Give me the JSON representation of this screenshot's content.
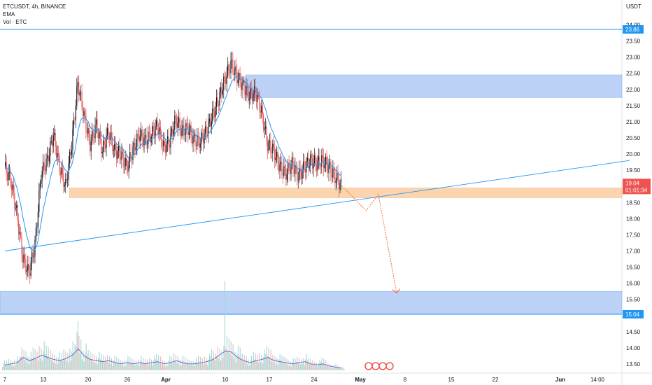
{
  "header": {
    "symbol_line": "ETCUSDT, 4h, BINANCE",
    "ema_label": "EMA",
    "volume_label": "Vol · ETC"
  },
  "chart_data": {
    "type": "candlestick",
    "currency": "USDT",
    "ylim": [
      13.25,
      24.25
    ],
    "y_ticks": [
      "24.00",
      "23.50",
      "23.00",
      "22.50",
      "22.00",
      "21.50",
      "21.00",
      "20.50",
      "20.00",
      "19.50",
      "19.00",
      "18.50",
      "18.00",
      "17.50",
      "17.00",
      "16.50",
      "16.00",
      "15.50",
      "15.00",
      "14.50",
      "14.00",
      "13.50"
    ],
    "x_ticks": [
      "7",
      "13",
      "20",
      "26",
      "Apr",
      "10",
      "17",
      "24",
      "May",
      "8",
      "15",
      "22",
      "Jun",
      "14:00"
    ],
    "grid": false,
    "price_labels": {
      "upper_line": "23.86",
      "current_price": "19.04",
      "countdown": "01:01:34",
      "lower_zone": "15.04"
    },
    "colors": {
      "up": "#26a69a",
      "down": "#ef5350",
      "candle_body": "#131722",
      "ema": "#2196f3",
      "zone_blue": "#bbd2f6",
      "zone_orange": "#fbd5b0",
      "projection": "#f26c2b",
      "volume_up": "#a6d8d3",
      "volume_down": "#f4b8b6"
    },
    "zones": [
      {
        "kind": "resistance",
        "from": 21.75,
        "to": 22.45
      },
      {
        "kind": "support",
        "from": 18.65,
        "to": 18.95
      },
      {
        "kind": "target",
        "from": 15.05,
        "to": 15.75
      }
    ],
    "horizontal_lines": [
      23.86,
      15.04
    ],
    "trendline": {
      "start": [
        "Mar 7",
        17.0
      ],
      "end": [
        "Jun 17",
        19.8
      ]
    },
    "projection_path": [
      [
        "May 1",
        19.02
      ],
      [
        "May 5",
        18.25
      ],
      [
        "May 7",
        18.75
      ],
      [
        "May 10",
        15.7
      ]
    ],
    "price_path": [
      [
        "Mar 7",
        19.6
      ],
      [
        "Mar 8",
        19.2
      ],
      [
        "Mar 9",
        18.2
      ],
      [
        "Mar 10",
        16.8
      ],
      [
        "Mar 11",
        16.3
      ],
      [
        "Mar 12",
        17.2
      ],
      [
        "Mar 13",
        19.4
      ],
      [
        "Mar 14",
        19.8
      ],
      [
        "Mar 15",
        20.6
      ],
      [
        "Mar 16",
        19.6
      ],
      [
        "Mar 17",
        19.0
      ],
      [
        "Mar 18",
        20.3
      ],
      [
        "Mar 19",
        22.2
      ],
      [
        "Mar 20",
        21.2
      ],
      [
        "Mar 21",
        20.3
      ],
      [
        "Mar 22",
        20.9
      ],
      [
        "Mar 23",
        20.1
      ],
      [
        "Mar 24",
        20.7
      ],
      [
        "Mar 25",
        20.1
      ],
      [
        "Mar 26",
        20.0
      ],
      [
        "Mar 27",
        19.6
      ],
      [
        "Mar 28",
        20.1
      ],
      [
        "Mar 29",
        20.6
      ],
      [
        "Mar 30",
        20.4
      ],
      [
        "Mar 31",
        20.6
      ],
      [
        "Apr 1",
        20.9
      ],
      [
        "Apr 2",
        20.2
      ],
      [
        "Apr 3",
        20.4
      ],
      [
        "Apr 4",
        21.1
      ],
      [
        "Apr 5",
        20.7
      ],
      [
        "Apr 6",
        20.8
      ],
      [
        "Apr 7",
        20.4
      ],
      [
        "Apr 8",
        20.4
      ],
      [
        "Apr 9",
        20.7
      ],
      [
        "Apr 10",
        21.2
      ],
      [
        "Apr 11",
        21.7
      ],
      [
        "Apr 12",
        22.3
      ],
      [
        "Apr 13",
        22.8
      ],
      [
        "Apr 14",
        22.4
      ],
      [
        "Apr 15",
        22.1
      ],
      [
        "Apr 16",
        21.8
      ],
      [
        "Apr 17",
        21.9
      ],
      [
        "Apr 18",
        21.3
      ],
      [
        "Apr 19",
        20.3
      ],
      [
        "Apr 20",
        20.1
      ],
      [
        "Apr 21",
        19.6
      ],
      [
        "Apr 22",
        19.4
      ],
      [
        "Apr 23",
        19.7
      ],
      [
        "Apr 24",
        19.3
      ],
      [
        "Apr 25",
        19.6
      ],
      [
        "Apr 26",
        19.8
      ],
      [
        "Apr 27",
        19.7
      ],
      [
        "Apr 28",
        19.8
      ],
      [
        "Apr 29",
        19.6
      ],
      [
        "Apr 30",
        19.3
      ],
      [
        "May 1",
        19.04
      ]
    ],
    "volume_relative": [
      0.25,
      0.3,
      0.35,
      0.6,
      0.45,
      0.55,
      0.7,
      0.6,
      0.5,
      0.45,
      0.55,
      0.7,
      1.0,
      0.65,
      0.5,
      0.45,
      0.4,
      0.45,
      0.35,
      0.3,
      0.35,
      0.3,
      0.35,
      0.3,
      0.35,
      0.4,
      0.3,
      0.35,
      0.45,
      0.35,
      0.3,
      0.3,
      0.35,
      0.4,
      0.5,
      0.7,
      0.9,
      0.85,
      0.6,
      0.45,
      0.35,
      0.45,
      0.5,
      0.6,
      0.45,
      0.4,
      0.35,
      0.3,
      0.35,
      0.4,
      0.3,
      0.25,
      0.3,
      0.2,
      0.15,
      0.1
    ]
  }
}
